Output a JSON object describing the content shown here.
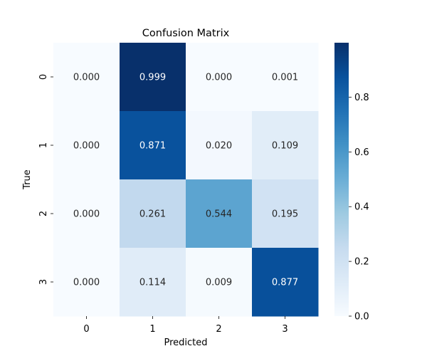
{
  "chart_data": {
    "type": "heatmap",
    "title": "Confusion Matrix",
    "xlabel": "Predicted",
    "ylabel": "True",
    "x_categories": [
      "0",
      "1",
      "2",
      "3"
    ],
    "y_categories": [
      "0",
      "1",
      "2",
      "3"
    ],
    "values": [
      [
        0.0,
        0.999,
        0.0,
        0.001
      ],
      [
        0.0,
        0.871,
        0.02,
        0.109
      ],
      [
        0.0,
        0.261,
        0.544,
        0.195
      ],
      [
        0.0,
        0.114,
        0.009,
        0.877
      ]
    ],
    "value_format": "0.000",
    "colormap": "Blues",
    "colorbar": {
      "range": [
        0.0,
        0.999
      ],
      "ticks": [
        0.0,
        0.2,
        0.4,
        0.6,
        0.8
      ],
      "tick_labels": [
        "0.0",
        "0.2",
        "0.4",
        "0.6",
        "0.8"
      ]
    },
    "colormap_stops": [
      "#f7fbff",
      "#deebf7",
      "#c6dbef",
      "#9ecae1",
      "#6baed6",
      "#4292c6",
      "#2171b5",
      "#08519c",
      "#08306b"
    ]
  }
}
